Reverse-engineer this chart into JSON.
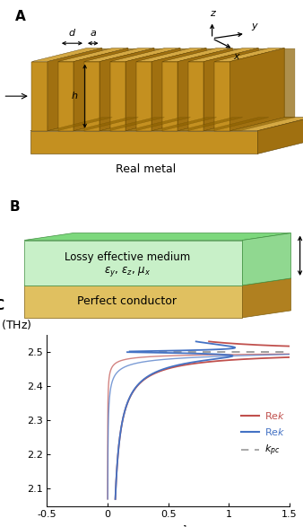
{
  "red_color": "#c0504d",
  "blue_color": "#4472c4",
  "dashed_color": "#999999",
  "xlim": [
    -0.5,
    1.5
  ],
  "ylim": [
    2.05,
    2.55
  ],
  "yticks": [
    2.1,
    2.2,
    2.3,
    2.4,
    2.5
  ],
  "xticks": [
    -0.5,
    0,
    0.5,
    1.0,
    1.5
  ],
  "xtick_labels": [
    "-0.5",
    "0",
    "0.5",
    "1",
    "1.5"
  ],
  "metal_top_color": "#D4A843",
  "metal_front_color": "#C49020",
  "metal_side_color": "#A07010",
  "metal_dark_color": "#8B6000",
  "metal_edge_color": "#5a3e00",
  "em_top_color": "#7DD87D",
  "em_front_color": "#C8F0C8",
  "em_side_color": "#90D890",
  "em_edge_color": "#409040",
  "pc_top_color": "#E8C870",
  "pc_front_color": "#E0C060",
  "pc_side_color": "#B08020",
  "pc_edge_color": "#806010"
}
